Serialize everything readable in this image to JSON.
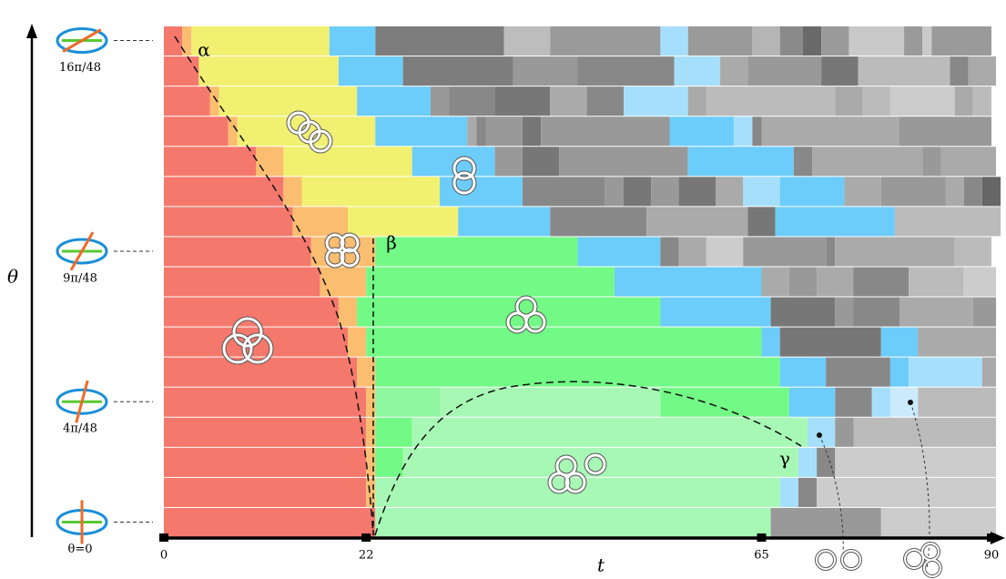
{
  "chart_data": {
    "type": "segment-timeline",
    "xlabel": "t",
    "ylabel": "θ",
    "xlim": [
      0,
      90
    ],
    "xticks": [
      0,
      22,
      65,
      90
    ],
    "annotations": [
      "α",
      "β",
      "γ"
    ],
    "rows": [
      {
        "label": "16π/48",
        "segments": [
          {
            "color": "#f5786d",
            "value": 2
          },
          {
            "color": "#fbbd70",
            "value": 1
          },
          {
            "color": "#f1f071",
            "value": 15
          },
          {
            "color": "#6ccdfb",
            "value": 5
          },
          {
            "color": "#7d7d7d",
            "value": 14
          },
          {
            "color": "#bdbdbd",
            "value": 5
          },
          {
            "color": "#9a9a9a",
            "value": 12
          },
          {
            "color": "#a6dffb",
            "value": 3
          },
          {
            "color": "#9a9a9a",
            "value": 7
          },
          {
            "color": "#b5b5b5",
            "value": 3
          },
          {
            "color": "#8a8a8a",
            "value": 2.5
          },
          {
            "color": "#6a6a6a",
            "value": 2
          },
          {
            "color": "#9a9a9a",
            "value": 3
          },
          {
            "color": "#c9c9c9",
            "value": 6
          },
          {
            "color": "#9a9a9a",
            "value": 2
          },
          {
            "color": "#c9c9c9",
            "value": 1
          },
          {
            "color": "#9a9a9a",
            "value": 6.5
          }
        ]
      },
      {
        "segments": [
          {
            "color": "#f5786d",
            "value": 3.8
          },
          {
            "color": "#f1f071",
            "value": 15.2
          },
          {
            "color": "#6ccdfb",
            "value": 7
          },
          {
            "color": "#7d7d7d",
            "value": 12
          },
          {
            "color": "#999999",
            "value": 7
          },
          {
            "color": "#888888",
            "value": 10.5
          },
          {
            "color": "#a6dffb",
            "value": 5
          },
          {
            "color": "#aaaaaa",
            "value": 3
          },
          {
            "color": "#999999",
            "value": 8
          },
          {
            "color": "#777777",
            "value": 4
          },
          {
            "color": "#bbbbbb",
            "value": 10
          },
          {
            "color": "#888888",
            "value": 2
          },
          {
            "color": "#aaaaaa",
            "value": 3
          }
        ]
      },
      {
        "segments": [
          {
            "color": "#f5786d",
            "value": 5
          },
          {
            "color": "#fbbd70",
            "value": 1
          },
          {
            "color": "#f1f071",
            "value": 15
          },
          {
            "color": "#6ccdfb",
            "value": 8
          },
          {
            "color": "#999999",
            "value": 2
          },
          {
            "color": "#888888",
            "value": 5
          },
          {
            "color": "#777777",
            "value": 6
          },
          {
            "color": "#aaaaaa",
            "value": 4
          },
          {
            "color": "#888888",
            "value": 4
          },
          {
            "color": "#a6dffb",
            "value": 7
          },
          {
            "color": "#aaaaaa",
            "value": 2
          },
          {
            "color": "#bbbbbb",
            "value": 14
          },
          {
            "color": "#aaaaaa",
            "value": 3
          },
          {
            "color": "#bbbbbb",
            "value": 3
          },
          {
            "color": "#cccccc",
            "value": 7
          },
          {
            "color": "#aaaaaa",
            "value": 2
          },
          {
            "color": "#bbbbbb",
            "value": 2
          }
        ]
      },
      {
        "segments": [
          {
            "color": "#f5786d",
            "value": 7
          },
          {
            "color": "#fbbd70",
            "value": 1
          },
          {
            "color": "#f1f071",
            "value": 15
          },
          {
            "color": "#6ccdfb",
            "value": 10
          },
          {
            "color": "#aaaaaa",
            "value": 1
          },
          {
            "color": "#888888",
            "value": 1
          },
          {
            "color": "#999999",
            "value": 4
          },
          {
            "color": "#777777",
            "value": 2
          },
          {
            "color": "#999999",
            "value": 14
          },
          {
            "color": "#6ccdfb",
            "value": 7
          },
          {
            "color": "#a6dffb",
            "value": 2
          },
          {
            "color": "#888888",
            "value": 1
          },
          {
            "color": "#aaaaaa",
            "value": 15
          },
          {
            "color": "#999999",
            "value": 10
          }
        ]
      },
      {
        "segments": [
          {
            "color": "#f5786d",
            "value": 10
          },
          {
            "color": "#fbbd70",
            "value": 3
          },
          {
            "color": "#f1f071",
            "value": 14
          },
          {
            "color": "#6ccdfb",
            "value": 9
          },
          {
            "color": "#999999",
            "value": 3
          },
          {
            "color": "#777777",
            "value": 4
          },
          {
            "color": "#999999",
            "value": 14
          },
          {
            "color": "#6ccdfb",
            "value": 11.5
          },
          {
            "color": "#888888",
            "value": 2
          },
          {
            "color": "#aaaaaa",
            "value": 12
          },
          {
            "color": "#999999",
            "value": 2
          },
          {
            "color": "#aaaaaa",
            "value": 6
          }
        ]
      },
      {
        "segments": [
          {
            "color": "#f5786d",
            "value": 13
          },
          {
            "color": "#fbbd70",
            "value": 2
          },
          {
            "color": "#f1f071",
            "value": 15
          },
          {
            "color": "#6ccdfb",
            "value": 9
          },
          {
            "color": "#888888",
            "value": 9
          },
          {
            "color": "#999999",
            "value": 2
          },
          {
            "color": "#777777",
            "value": 3
          },
          {
            "color": "#999999",
            "value": 3
          },
          {
            "color": "#777777",
            "value": 4
          },
          {
            "color": "#aaaaaa",
            "value": 3
          },
          {
            "color": "#a6dffb",
            "value": 4
          },
          {
            "color": "#6ccdfb",
            "value": 7
          },
          {
            "color": "#aaaaaa",
            "value": 4
          },
          {
            "color": "#999999",
            "value": 7
          },
          {
            "color": "#aaaaaa",
            "value": 2
          },
          {
            "color": "#888888",
            "value": 2
          },
          {
            "color": "#666666",
            "value": 2
          }
        ]
      },
      {
        "segments": [
          {
            "color": "#f5786d",
            "value": 14
          },
          {
            "color": "#fbbd70",
            "value": 6
          },
          {
            "color": "#f1f071",
            "value": 12
          },
          {
            "color": "#6ccdfb",
            "value": 10
          },
          {
            "color": "#888888",
            "value": 10.5
          },
          {
            "color": "#aaaaaa",
            "value": 11
          },
          {
            "color": "#777777",
            "value": 3
          },
          {
            "color": "#6ccdfb",
            "value": 13
          },
          {
            "color": "#bbbbbb",
            "value": 11.5
          }
        ]
      },
      {
        "label": "9π/48",
        "segments": [
          {
            "color": "#f5786d",
            "value": 16
          },
          {
            "color": "#fbbd70",
            "value": 7
          },
          {
            "color": "#73fa86",
            "value": 22
          },
          {
            "color": "#6ccdfb",
            "value": 9
          },
          {
            "color": "#888888",
            "value": 2
          },
          {
            "color": "#aaaaaa",
            "value": 3
          },
          {
            "color": "#cccccc",
            "value": 4
          },
          {
            "color": "#999999",
            "value": 9
          },
          {
            "color": "#888888",
            "value": 1
          },
          {
            "color": "#aaaaaa",
            "value": 13
          },
          {
            "color": "#bbbbbb",
            "value": 4
          }
        ]
      },
      {
        "segments": [
          {
            "color": "#f5786d",
            "value": 17
          },
          {
            "color": "#fbbd70",
            "value": 5
          },
          {
            "color": "#73fa86",
            "value": 27
          },
          {
            "color": "#6ccdfb",
            "value": 16
          },
          {
            "color": "#aaaaaa",
            "value": 3
          },
          {
            "color": "#999999",
            "value": 3
          },
          {
            "color": "#aaaaaa",
            "value": 4
          },
          {
            "color": "#888888",
            "value": 6
          },
          {
            "color": "#bbbbbb",
            "value": 6
          },
          {
            "color": "#cccccc",
            "value": 3.5
          }
        ]
      },
      {
        "segments": [
          {
            "color": "#f5786d",
            "value": 19
          },
          {
            "color": "#fbbd70",
            "value": 2
          },
          {
            "color": "#73fa86",
            "value": 33
          },
          {
            "color": "#6ccdfb",
            "value": 12
          },
          {
            "color": "#777777",
            "value": 7
          },
          {
            "color": "#999999",
            "value": 2
          },
          {
            "color": "#888888",
            "value": 5
          },
          {
            "color": "#aaaaaa",
            "value": 8
          },
          {
            "color": "#999999",
            "value": 2.5
          }
        ]
      },
      {
        "segments": [
          {
            "color": "#f5786d",
            "value": 20
          },
          {
            "color": "#fbbd70",
            "value": 2
          },
          {
            "color": "#73fa86",
            "value": 43
          },
          {
            "color": "#6ccdfb",
            "value": 2
          },
          {
            "color": "#777777",
            "value": 11
          },
          {
            "color": "#6ccdfb",
            "value": 4
          },
          {
            "color": "#aaaaaa",
            "value": 8.5
          }
        ]
      },
      {
        "segments": [
          {
            "color": "#f5786d",
            "value": 21
          },
          {
            "color": "#fbbd70",
            "value": 2
          },
          {
            "color": "#73fa86",
            "value": 44
          },
          {
            "color": "#6ccdfb",
            "value": 5
          },
          {
            "color": "#888888",
            "value": 7
          },
          {
            "color": "#6ccdfb",
            "value": 2
          },
          {
            "color": "#a6dffb",
            "value": 8
          },
          {
            "color": "#aaaaaa",
            "value": 1.5
          }
        ]
      },
      {
        "label": "4π/48",
        "segments": [
          {
            "color": "#f5786d",
            "value": 22
          },
          {
            "color": "#fbbd70",
            "value": 1
          },
          {
            "color": "#8ff79f",
            "value": 7
          },
          {
            "color": "#a8f8b5",
            "value": 24
          },
          {
            "color": "#73fa86",
            "value": 14
          },
          {
            "color": "#6ccdfb",
            "value": 5
          },
          {
            "color": "#888888",
            "value": 4
          },
          {
            "color": "#a6dffb",
            "value": 2
          },
          {
            "color": "#cbeafc",
            "value": 3
          },
          {
            "color": "#bbbbbb",
            "value": 8.5
          }
        ]
      },
      {
        "segments": [
          {
            "color": "#f5786d",
            "value": 22
          },
          {
            "color": "#fbbd70",
            "value": 1
          },
          {
            "color": "#73fa86",
            "value": 4
          },
          {
            "color": "#a8f8b5",
            "value": 43
          },
          {
            "color": "#a6dffb",
            "value": 3
          },
          {
            "color": "#999999",
            "value": 2
          },
          {
            "color": "#bbbbbb",
            "value": 15.5
          }
        ]
      },
      {
        "segments": [
          {
            "color": "#f5786d",
            "value": 22
          },
          {
            "color": "#fbbd70",
            "value": 1
          },
          {
            "color": "#73fa86",
            "value": 3
          },
          {
            "color": "#a8f8b5",
            "value": 43
          },
          {
            "color": "#a6dffb",
            "value": 2
          },
          {
            "color": "#888888",
            "value": 2
          },
          {
            "color": "#cccccc",
            "value": 17.5
          }
        ]
      },
      {
        "segments": [
          {
            "color": "#f5786d",
            "value": 22
          },
          {
            "color": "#fbbd70",
            "value": 1
          },
          {
            "color": "#a8f8b5",
            "value": 44
          },
          {
            "color": "#a6dffb",
            "value": 2
          },
          {
            "color": "#888888",
            "value": 2
          },
          {
            "color": "#cccccc",
            "value": 19.5
          }
        ]
      },
      {
        "label": "θ=0",
        "segments": [
          {
            "color": "#f5786d",
            "value": 23
          },
          {
            "color": "#a8f8b5",
            "value": 43
          },
          {
            "color": "#999999",
            "value": 12
          },
          {
            "color": "#cccccc",
            "value": 12.5
          }
        ]
      }
    ]
  }
}
